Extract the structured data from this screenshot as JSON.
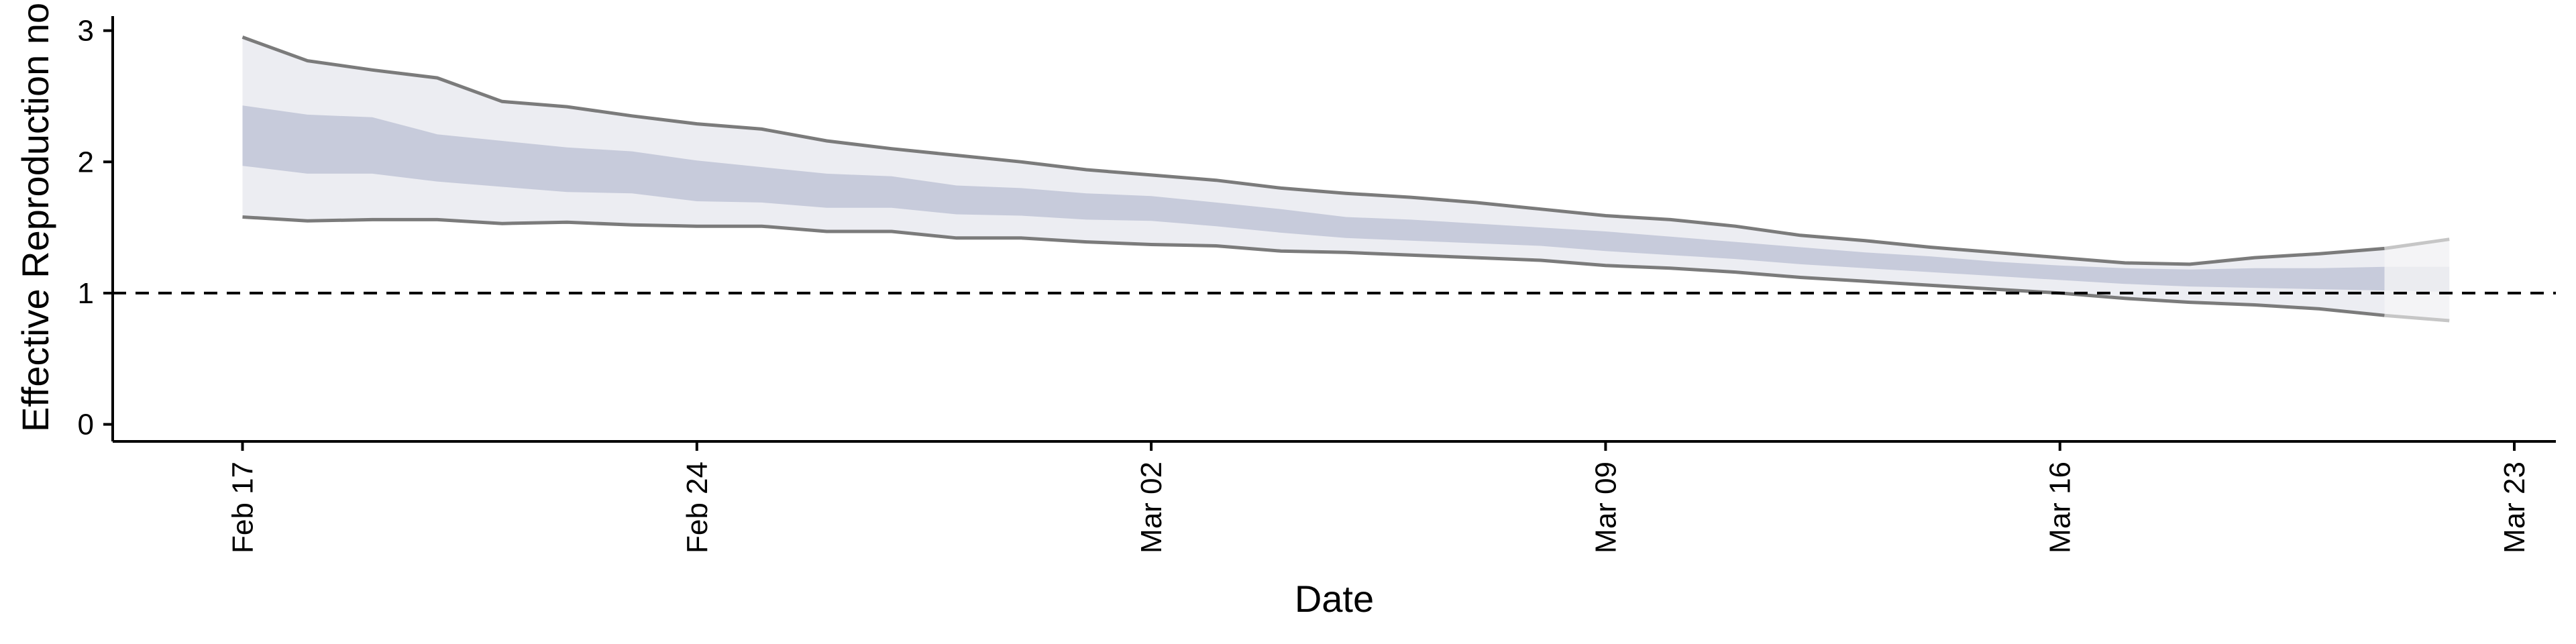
{
  "chart_data": {
    "type": "area",
    "xlabel": "Date",
    "ylabel": "Effective Reproduction no",
    "x_ticks": [
      "Feb 17",
      "Feb 24",
      "Mar 02",
      "Mar 09",
      "Mar 16",
      "Mar 23"
    ],
    "y_ticks": [
      "0",
      "1",
      "2",
      "3"
    ],
    "ylim": [
      -0.13,
      3.08
    ],
    "xlim": [
      "2020-02-15",
      "2020-03-23"
    ],
    "reference_line": {
      "y": 1,
      "style": "dashed"
    },
    "grid": false,
    "dates": [
      "2020-02-17",
      "2020-02-18",
      "2020-02-19",
      "2020-02-20",
      "2020-02-21",
      "2020-02-22",
      "2020-02-23",
      "2020-02-24",
      "2020-02-25",
      "2020-02-26",
      "2020-02-27",
      "2020-02-28",
      "2020-02-29",
      "2020-03-01",
      "2020-03-02",
      "2020-03-03",
      "2020-03-04",
      "2020-03-05",
      "2020-03-06",
      "2020-03-07",
      "2020-03-08",
      "2020-03-09",
      "2020-03-10",
      "2020-03-11",
      "2020-03-12",
      "2020-03-13",
      "2020-03-14",
      "2020-03-15",
      "2020-03-16",
      "2020-03-17",
      "2020-03-18",
      "2020-03-19",
      "2020-03-20",
      "2020-03-21",
      "2020-03-22"
    ],
    "series": [
      {
        "interval": "outer",
        "lower": [
          1.58,
          1.55,
          1.56,
          1.56,
          1.53,
          1.54,
          1.52,
          1.51,
          1.51,
          1.47,
          1.47,
          1.42,
          1.42,
          1.39,
          1.37,
          1.36,
          1.32,
          1.31,
          1.29,
          1.27,
          1.25,
          1.21,
          1.19,
          1.16,
          1.12,
          1.09,
          1.06,
          1.03,
          1.0,
          0.96,
          0.93,
          0.91,
          0.88,
          0.83,
          0.79
        ],
        "upper": [
          2.95,
          2.77,
          2.7,
          2.64,
          2.46,
          2.42,
          2.35,
          2.29,
          2.25,
          2.16,
          2.1,
          2.05,
          2.0,
          1.94,
          1.9,
          1.86,
          1.8,
          1.76,
          1.73,
          1.69,
          1.64,
          1.59,
          1.56,
          1.51,
          1.44,
          1.4,
          1.35,
          1.31,
          1.27,
          1.23,
          1.22,
          1.27,
          1.3,
          1.34,
          1.41
        ]
      },
      {
        "interval": "inner",
        "lower": [
          1.97,
          1.91,
          1.91,
          1.85,
          1.81,
          1.77,
          1.76,
          1.7,
          1.69,
          1.65,
          1.65,
          1.6,
          1.59,
          1.56,
          1.55,
          1.51,
          1.46,
          1.42,
          1.4,
          1.38,
          1.36,
          1.32,
          1.29,
          1.26,
          1.22,
          1.19,
          1.16,
          1.13,
          1.1,
          1.07,
          1.05,
          1.04,
          1.03,
          1.02,
          1.01
        ],
        "upper": [
          2.43,
          2.36,
          2.34,
          2.21,
          2.16,
          2.11,
          2.08,
          2.01,
          1.96,
          1.91,
          1.89,
          1.82,
          1.8,
          1.76,
          1.74,
          1.69,
          1.64,
          1.58,
          1.56,
          1.53,
          1.5,
          1.47,
          1.43,
          1.39,
          1.35,
          1.31,
          1.28,
          1.24,
          1.21,
          1.19,
          1.18,
          1.19,
          1.19,
          1.2,
          1.2
        ]
      }
    ],
    "projected_from": "2020-03-21"
  },
  "colors": {
    "outer_band": "#ecedf2",
    "inner_band": "#c7cbdb",
    "outer_band_projected": "#f4f4f6",
    "inner_band_projected": "#ebecf0",
    "bound_line": "#7b7b7b",
    "bound_line_projected": "#c6c6c6",
    "axis": "#000000",
    "reference_line": "#000000"
  }
}
